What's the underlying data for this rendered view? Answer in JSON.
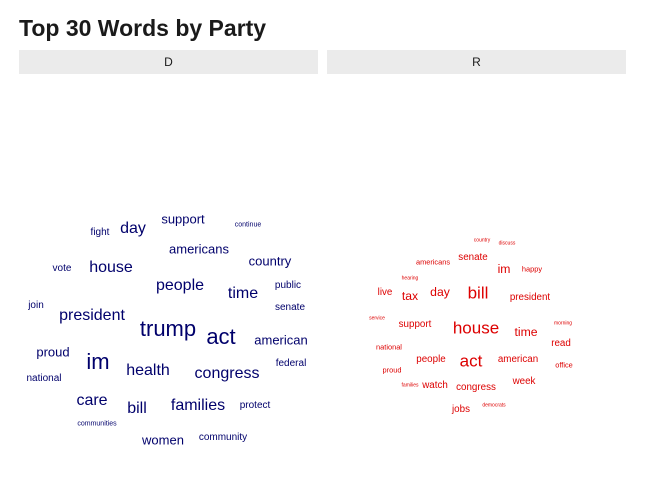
{
  "title": "Top 30 Words by Party",
  "chart_data": {
    "type": "wordcloud",
    "title": "Top 30 Words by Party",
    "facets": [
      {
        "label": "D",
        "color": "#00006b",
        "words": [
          {
            "text": "trump",
            "size": 3
          },
          {
            "text": "act",
            "size": 3
          },
          {
            "text": "im",
            "size": 3
          },
          {
            "text": "people",
            "size": 2
          },
          {
            "text": "health",
            "size": 2
          },
          {
            "text": "bill",
            "size": 2
          },
          {
            "text": "house",
            "size": 2
          },
          {
            "text": "time",
            "size": 2
          },
          {
            "text": "care",
            "size": 2
          },
          {
            "text": "congress",
            "size": 2
          },
          {
            "text": "president",
            "size": 2
          },
          {
            "text": "day",
            "size": 2
          },
          {
            "text": "families",
            "size": 2
          },
          {
            "text": "american",
            "size": 1.5
          },
          {
            "text": "americans",
            "size": 1.5
          },
          {
            "text": "proud",
            "size": 1.5
          },
          {
            "text": "support",
            "size": 1.5
          },
          {
            "text": "women",
            "size": 1.5
          },
          {
            "text": "country",
            "size": 1.5
          },
          {
            "text": "fight",
            "size": 1
          },
          {
            "text": "vote",
            "size": 1
          },
          {
            "text": "senate",
            "size": 1
          },
          {
            "text": "public",
            "size": 1
          },
          {
            "text": "join",
            "size": 1
          },
          {
            "text": "community",
            "size": 1
          },
          {
            "text": "federal",
            "size": 1
          },
          {
            "text": "protect",
            "size": 1
          },
          {
            "text": "national",
            "size": 1
          },
          {
            "text": "continue",
            "size": 0.5
          },
          {
            "text": "communities",
            "size": 0.5
          }
        ]
      },
      {
        "label": "R",
        "color": "#dd0000",
        "words": [
          {
            "text": "bill",
            "size": 3
          },
          {
            "text": "house",
            "size": 3
          },
          {
            "text": "act",
            "size": 3
          },
          {
            "text": "time",
            "size": 2
          },
          {
            "text": "day",
            "size": 2
          },
          {
            "text": "tax",
            "size": 2
          },
          {
            "text": "im",
            "size": 2
          },
          {
            "text": "american",
            "size": 1.5
          },
          {
            "text": "people",
            "size": 1.5
          },
          {
            "text": "president",
            "size": 1.5
          },
          {
            "text": "support",
            "size": 1.5
          },
          {
            "text": "congress",
            "size": 1.5
          },
          {
            "text": "watch",
            "size": 1.5
          },
          {
            "text": "week",
            "size": 1.5
          },
          {
            "text": "jobs",
            "size": 1.5
          },
          {
            "text": "live",
            "size": 1.5
          },
          {
            "text": "senate",
            "size": 1.5
          },
          {
            "text": "read",
            "size": 1.5
          },
          {
            "text": "proud",
            "size": 1
          },
          {
            "text": "happy",
            "size": 1
          },
          {
            "text": "office",
            "size": 1
          },
          {
            "text": "national",
            "size": 1
          },
          {
            "text": "americans",
            "size": 1
          },
          {
            "text": "morning",
            "size": 0.5
          },
          {
            "text": "service",
            "size": 0.5
          },
          {
            "text": "discuss",
            "size": 0.5
          },
          {
            "text": "country",
            "size": 0.5
          },
          {
            "text": "hearing",
            "size": 0.5
          },
          {
            "text": "democrats",
            "size": 0.5
          },
          {
            "text": "families",
            "size": 0.5
          }
        ]
      }
    ]
  }
}
